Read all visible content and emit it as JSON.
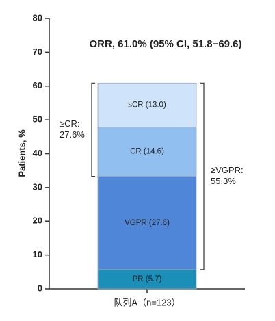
{
  "chart_data": {
    "type": "stacked-bar",
    "title": "ORR, 61.0% (95% CI, 51.8−69.6)",
    "y_label": "Patients, %",
    "categories": [
      "队列A（n=123）"
    ],
    "series": [
      {
        "color": "#1b8fb8",
        "values": [
          5.7
        ],
        "value_labels": [
          "PR (5.7)"
        ]
      },
      {
        "color": "#4f86d8",
        "values": [
          27.6
        ],
        "value_labels": [
          "VGPR (27.6)"
        ]
      },
      {
        "color": "#91bff0",
        "values": [
          14.6
        ],
        "value_labels": [
          "CR (14.6)"
        ]
      },
      {
        "color": "#cfe4fa",
        "values": [
          13.0
        ],
        "value_labels": [
          "sCR (13.0)"
        ]
      }
    ],
    "annotations": [
      {
        "lines": [
          "≥CR:",
          "27.6%"
        ]
      },
      {
        "lines": [
          "≥VGPR:",
          "55.3%"
        ]
      }
    ],
    "ylim": [
      0,
      80
    ],
    "yticks": [
      0,
      10,
      20,
      30,
      40,
      50,
      60,
      70,
      80
    ]
  }
}
